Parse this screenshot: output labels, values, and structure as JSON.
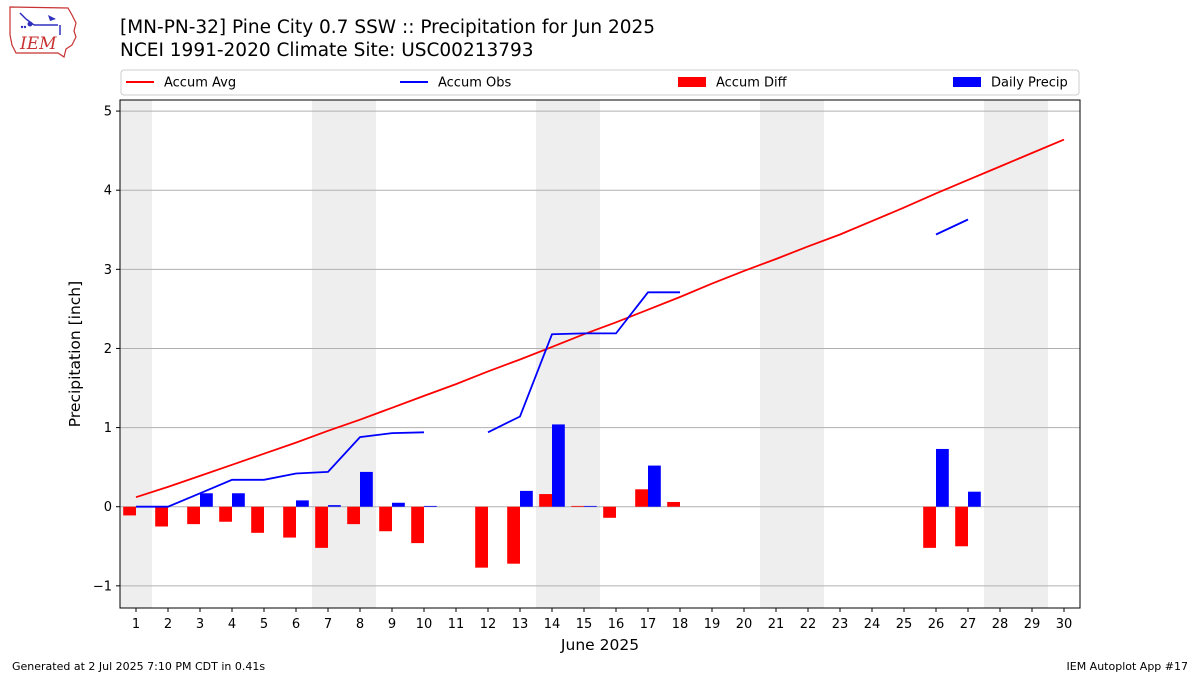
{
  "header": {
    "title_line1": "[MN-PN-32] Pine City 0.7 SSW :: Precipitation for Jun 2025",
    "title_line2": "NCEI 1991-2020 Climate Site: USC00213793"
  },
  "logo": {
    "text": "IEM"
  },
  "footer": {
    "left": "Generated at 2 Jul 2025 7:10 PM CDT in 0.41s",
    "right": "IEM Autoplot App #17"
  },
  "colors": {
    "avg": "#ff0000",
    "obs": "#0000ff",
    "diff": "#ff0000",
    "daily": "#0000ff",
    "weekend_band": "#eeeeee",
    "grid": "#b0b0b0"
  },
  "chart_data": {
    "type": "bar",
    "xlabel": "June 2025",
    "ylabel": "Precipitation [inch]",
    "ylim": [
      -1.28,
      5.14
    ],
    "yticks": [
      -1,
      0,
      1,
      2,
      3,
      4,
      5
    ],
    "ytick_labels": [
      "−1",
      "0",
      "1",
      "2",
      "3",
      "4",
      "5"
    ],
    "xlim": [
      0.5,
      30.5
    ],
    "days": [
      1,
      2,
      3,
      4,
      5,
      6,
      7,
      8,
      9,
      10,
      11,
      12,
      13,
      14,
      15,
      16,
      17,
      18,
      19,
      20,
      21,
      22,
      23,
      24,
      25,
      26,
      27,
      28,
      29,
      30
    ],
    "weekend_bands": [
      [
        0.5,
        1.5
      ],
      [
        6.5,
        8.5
      ],
      [
        13.5,
        15.5
      ],
      [
        20.5,
        22.5
      ],
      [
        27.5,
        29.5
      ]
    ],
    "legend": {
      "placement": "top",
      "entries": [
        {
          "label": "Accum Avg",
          "kind": "line",
          "color": "#ff0000"
        },
        {
          "label": "Accum Obs",
          "kind": "line",
          "color": "#0000ff"
        },
        {
          "label": "Accum Diff",
          "kind": "bar",
          "color": "#ff0000"
        },
        {
          "label": "Daily Precip",
          "kind": "bar",
          "color": "#0000ff"
        }
      ]
    },
    "series": [
      {
        "name": "Accum Avg",
        "type": "line",
        "color": "#ff0000",
        "values": [
          0.12,
          0.25,
          0.39,
          0.53,
          0.67,
          0.81,
          0.96,
          1.1,
          1.25,
          1.4,
          1.55,
          1.71,
          1.86,
          2.02,
          2.18,
          2.33,
          2.49,
          2.65,
          2.82,
          2.98,
          3.13,
          3.29,
          3.44,
          3.61,
          3.78,
          3.96,
          4.13,
          4.3,
          4.47,
          4.64
        ]
      },
      {
        "name": "Accum Obs",
        "type": "line",
        "color": "#0000ff",
        "values": [
          0.0,
          0.0,
          0.17,
          0.34,
          0.34,
          0.42,
          0.44,
          0.88,
          0.93,
          0.94,
          null,
          0.94,
          1.14,
          2.18,
          2.19,
          2.19,
          2.71,
          2.71,
          null,
          null,
          null,
          null,
          null,
          null,
          null,
          3.44,
          3.63,
          null,
          null,
          null
        ]
      },
      {
        "name": "Accum Diff",
        "type": "bar",
        "color": "#ff0000",
        "values": [
          -0.11,
          -0.25,
          -0.22,
          -0.19,
          -0.33,
          -0.39,
          -0.52,
          -0.22,
          -0.31,
          -0.46,
          null,
          -0.77,
          -0.72,
          0.16,
          0.01,
          -0.14,
          0.22,
          0.06,
          null,
          null,
          null,
          null,
          null,
          null,
          null,
          -0.52,
          -0.5,
          null,
          null,
          null
        ]
      },
      {
        "name": "Daily Precip",
        "type": "bar",
        "color": "#0000ff",
        "values": [
          0.0,
          0.0,
          0.17,
          0.17,
          0.0,
          0.08,
          0.02,
          0.44,
          0.05,
          0.01,
          null,
          null,
          0.2,
          1.04,
          0.01,
          0.0,
          0.52,
          0.0,
          null,
          null,
          null,
          null,
          null,
          null,
          null,
          0.73,
          0.19,
          null,
          null,
          null
        ]
      }
    ]
  }
}
